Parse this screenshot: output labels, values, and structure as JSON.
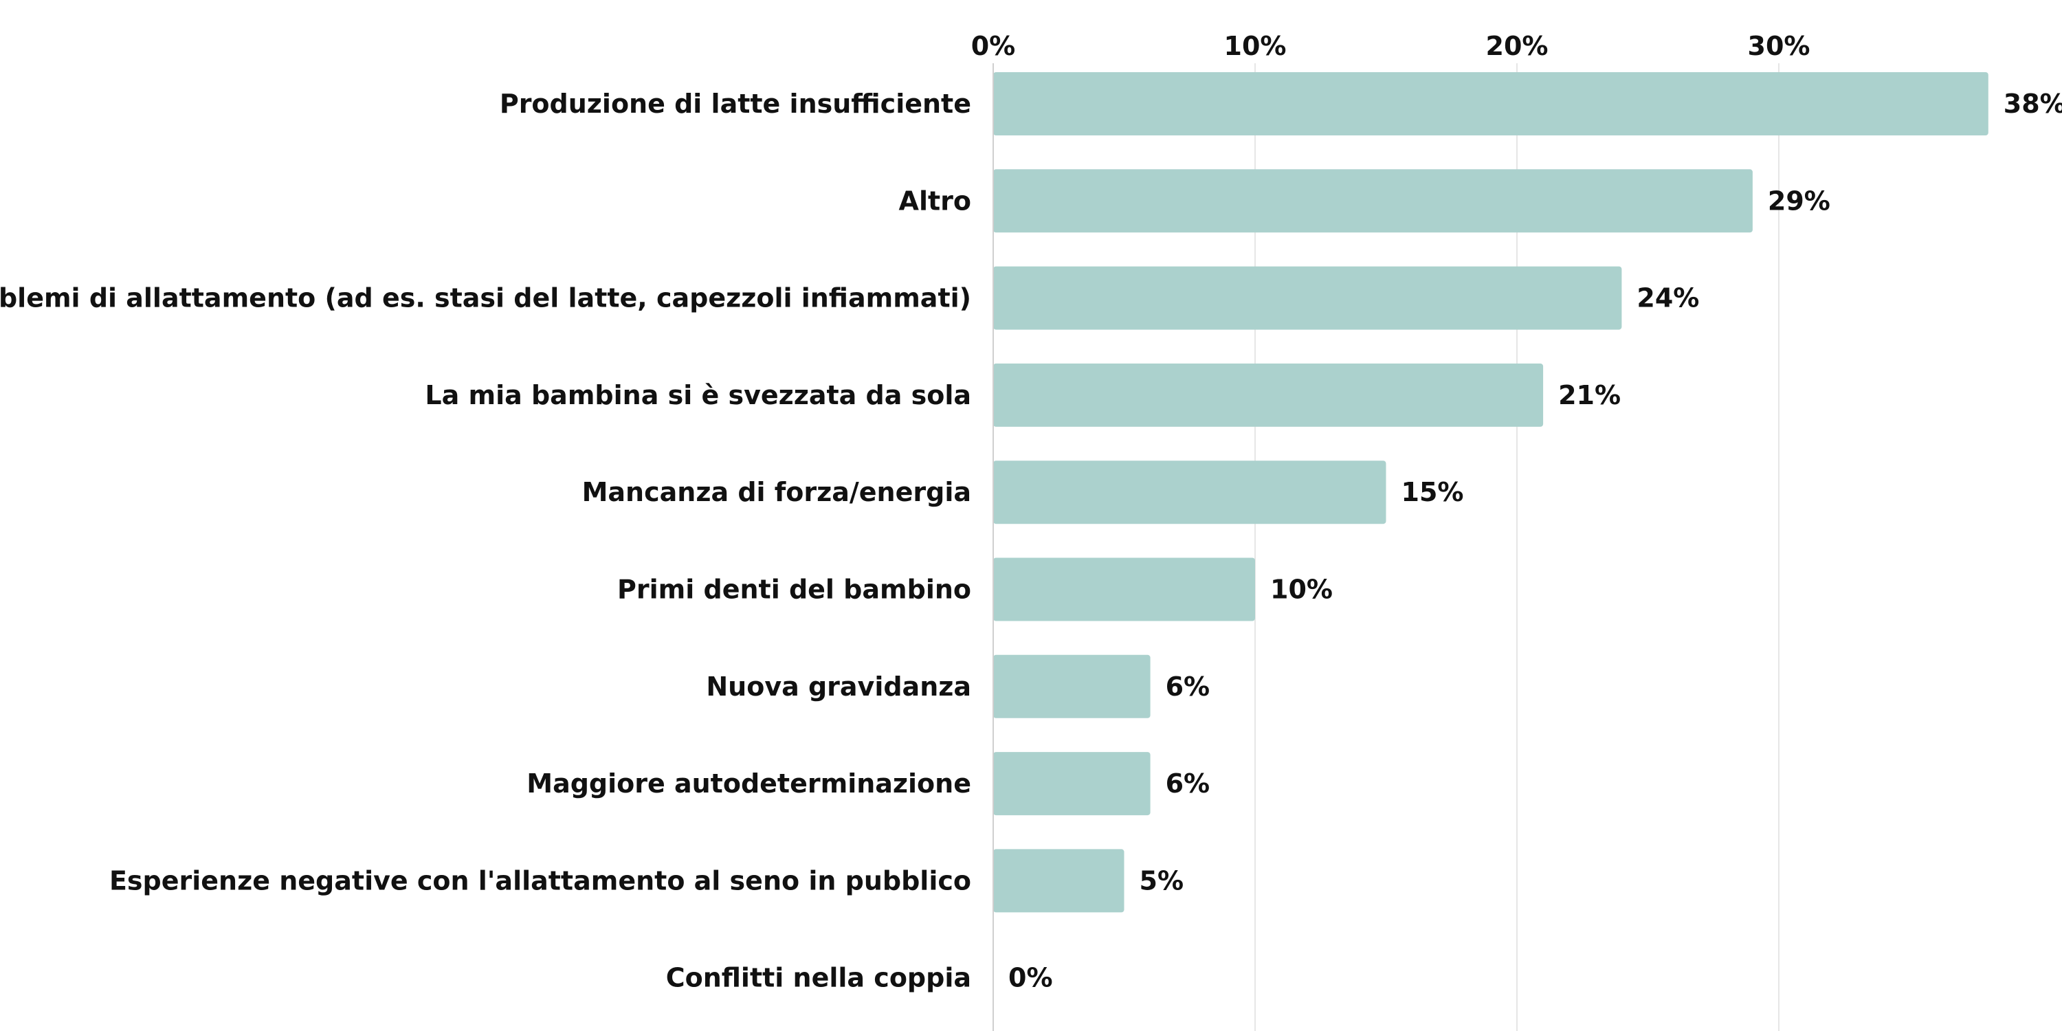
{
  "chart_data": {
    "type": "bar",
    "orientation": "horizontal",
    "categories": [
      "Produzione di latte insufficiente",
      "Altro",
      "Problemi di allattamento (ad es. stasi del latte, capezzoli infiammati)",
      "La mia bambina si è svezzata da sola",
      "Mancanza di forza/energia",
      "Primi denti del bambino",
      "Nuova gravidanza",
      "Maggiore autodeterminazione",
      "Esperienze negative con l'allattamento al seno in pubblico",
      "Conflitti nella coppia"
    ],
    "values": [
      38,
      29,
      24,
      21,
      15,
      10,
      6,
      6,
      5,
      0
    ],
    "value_labels": [
      "38%",
      "29%",
      "24%",
      "21%",
      "15%",
      "10%",
      "6%",
      "6%",
      "5%",
      "0%"
    ],
    "x_ticks": [
      0,
      10,
      20,
      30
    ],
    "x_tick_labels": [
      "0%",
      "10%",
      "20%",
      "30%"
    ],
    "xlim": [
      0,
      40
    ],
    "x_axis_position": "top",
    "grid": true,
    "bar_color": "#abd1cd"
  }
}
